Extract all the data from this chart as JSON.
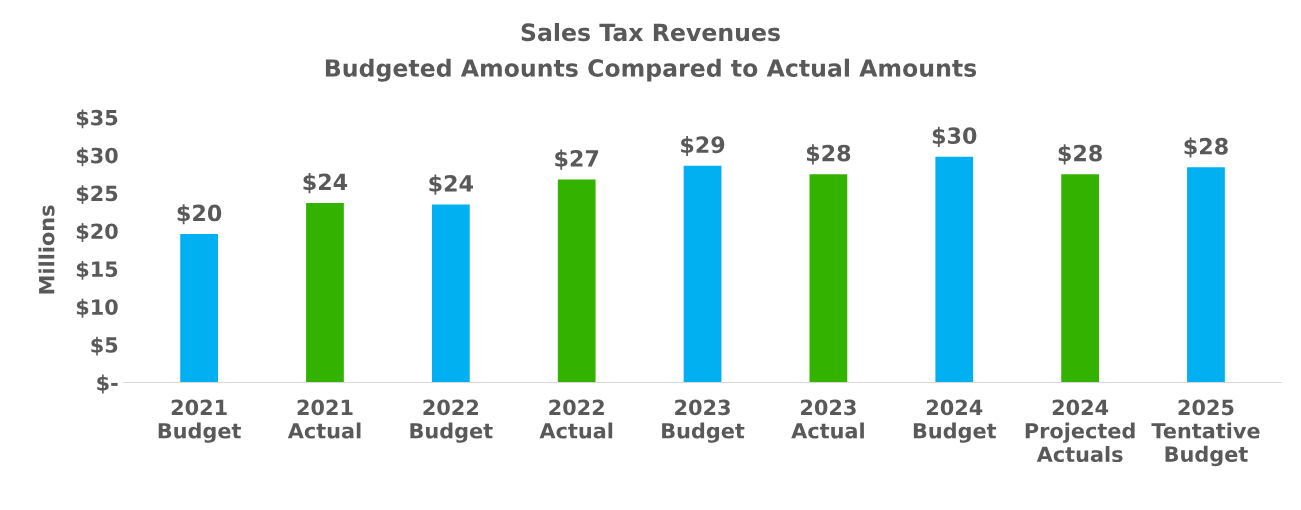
{
  "chart_data": {
    "type": "bar",
    "title": "Sales Tax Revenues",
    "subtitle": "Budgeted Amounts Compared to Actual Amounts",
    "ylabel": "Millions",
    "categories": [
      "2021\nBudget",
      "2021\nActual",
      "2022\nBudget",
      "2022\nActual",
      "2023\nBudget",
      "2023\nActual",
      "2024\nBudget",
      "2024\nProjected\nActuals",
      "2025\nTentative\nBudget"
    ],
    "values": [
      19.6,
      23.7,
      23.5,
      26.8,
      28.6,
      27.5,
      29.8,
      27.5,
      28.4
    ],
    "colors": [
      "#00b0f0",
      "#33b300",
      "#00b0f0",
      "#33b300",
      "#00b0f0",
      "#33b300",
      "#00b0f0",
      "#33b300",
      "#00b0f0"
    ],
    "value_labels": [
      "$20",
      "$24",
      "$24",
      "$27",
      "$29",
      "$28",
      "$30",
      "$28",
      "$28"
    ],
    "ylim": [
      0,
      35
    ],
    "yticks": [
      {
        "value": 0,
        "label": "$-"
      },
      {
        "value": 5,
        "label": "$5"
      },
      {
        "value": 10,
        "label": "$10"
      },
      {
        "value": 15,
        "label": "$15"
      },
      {
        "value": 20,
        "label": "$20"
      },
      {
        "value": 25,
        "label": "$25"
      },
      {
        "value": 30,
        "label": "$30"
      },
      {
        "value": 35,
        "label": "$35"
      }
    ],
    "grid": false,
    "legend": false
  }
}
